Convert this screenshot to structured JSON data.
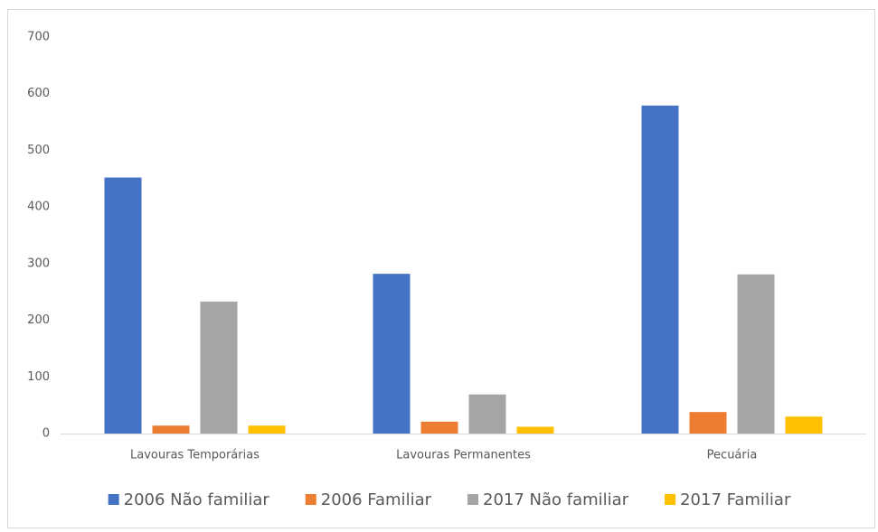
{
  "chart_data": {
    "type": "bar",
    "categories": [
      "Lavouras Temporárias",
      "Lavouras Permanentes",
      "Pecuária"
    ],
    "series": [
      {
        "name": "2006 Não familiar",
        "color": "#4472c4",
        "values": [
          452,
          282,
          579
        ]
      },
      {
        "name": "2006 Familiar",
        "color": "#ed7d31",
        "values": [
          14,
          21,
          38
        ]
      },
      {
        "name": "2017 Não familiar",
        "color": "#a5a5a5",
        "values": [
          233,
          69,
          281
        ]
      },
      {
        "name": "2017 Familiar",
        "color": "#ffc000",
        "values": [
          14,
          12,
          30
        ]
      }
    ],
    "ylim": [
      0,
      700
    ],
    "yticks": [
      0,
      100,
      200,
      300,
      400,
      500,
      600,
      700
    ],
    "grid": false
  }
}
